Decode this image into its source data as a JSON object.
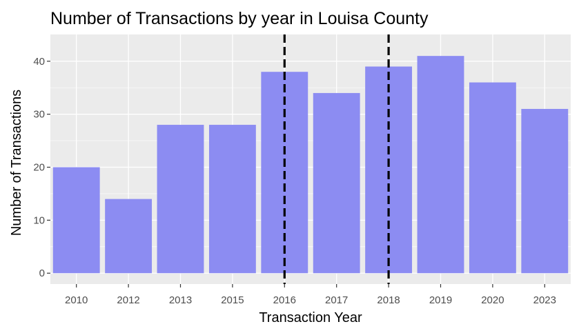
{
  "chart_data": {
    "type": "bar",
    "title": "Number of Transactions by year in Louisa County",
    "xlabel": "Transaction Year",
    "ylabel": "Number of Transactions",
    "categories": [
      "2010",
      "2012",
      "2013",
      "2015",
      "2016",
      "2017",
      "2018",
      "2019",
      "2020",
      "2023"
    ],
    "values": [
      20,
      14,
      28,
      28,
      38,
      34,
      39,
      41,
      36,
      31
    ],
    "ylim": [
      0,
      43
    ],
    "yticks": [
      0,
      10,
      20,
      30,
      40
    ],
    "reference_lines": [
      {
        "axis": "x",
        "at": "2016",
        "style": "dashed",
        "color": "#000000"
      },
      {
        "axis": "x",
        "at": "2018",
        "style": "dashed",
        "color": "#000000"
      }
    ],
    "bar_color": "#8c8cf2",
    "panel_background": "#ebebeb",
    "grid": true,
    "legend": "none"
  }
}
